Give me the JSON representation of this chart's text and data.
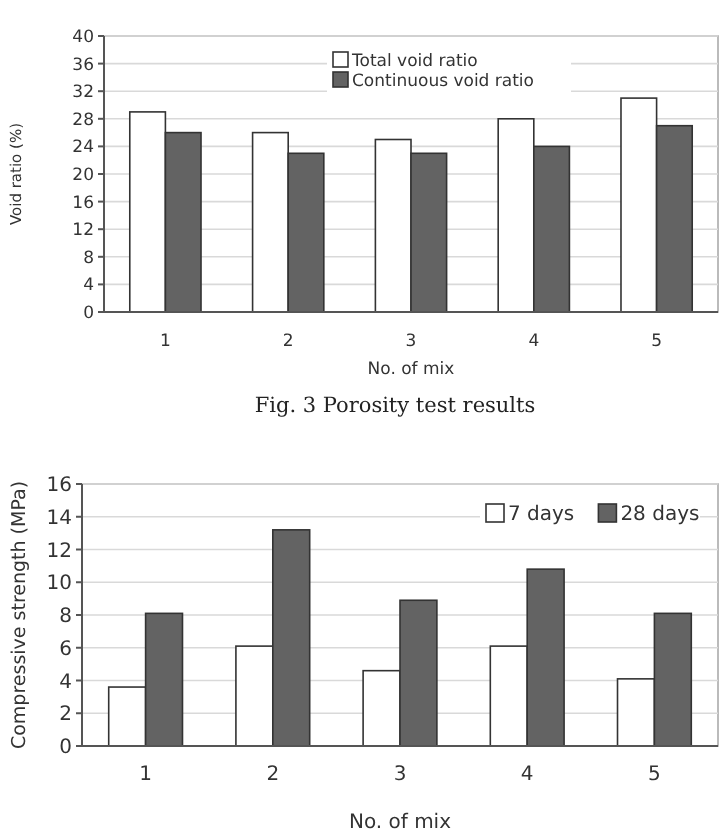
{
  "chart_data": [
    {
      "type": "bar",
      "categories": [
        "1",
        "2",
        "3",
        "4",
        "5"
      ],
      "xlabel": "No. of mix",
      "ylabel": "Void ratio (%)",
      "ylim": [
        0,
        40
      ],
      "yticks": [
        0,
        4,
        8,
        12,
        16,
        20,
        24,
        28,
        32,
        36,
        40
      ],
      "grid": "y",
      "legend": "top",
      "annotations": [
        "Fig. 3 Porosity test results"
      ],
      "series": [
        {
          "name": "Total void ratio",
          "color": "#ffffff",
          "values": [
            29,
            26,
            25,
            28,
            31
          ]
        },
        {
          "name": "Continuous void ratio",
          "color": "#636363",
          "values": [
            26,
            23,
            23,
            24,
            27
          ]
        }
      ]
    },
    {
      "type": "bar",
      "categories": [
        "1",
        "2",
        "3",
        "4",
        "5"
      ],
      "xlabel": "No. of mix",
      "ylabel": "Compressive strength (MPa)",
      "ylim": [
        0,
        16
      ],
      "yticks": [
        0,
        2,
        4,
        6,
        8,
        10,
        12,
        14,
        16
      ],
      "grid": "y",
      "legend": "top right",
      "series": [
        {
          "name": "7 days",
          "color": "#ffffff",
          "values": [
            3.6,
            6.1,
            4.6,
            6.1,
            4.1
          ]
        },
        {
          "name": "28 days",
          "color": "#636363",
          "values": [
            8.1,
            13.2,
            8.9,
            10.8,
            8.1
          ]
        }
      ]
    }
  ]
}
